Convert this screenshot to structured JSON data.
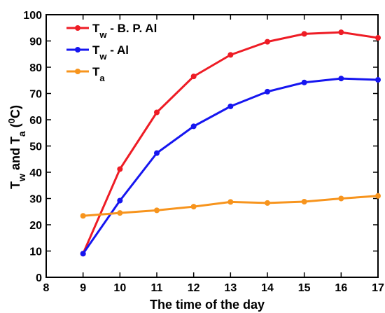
{
  "chart_data": {
    "type": "line",
    "title": "",
    "xlabel": "The time of the day",
    "ylabel": {
      "parts": [
        "T",
        "w",
        " and T",
        "a",
        " (",
        "0",
        "C)"
      ]
    },
    "xlim": [
      8,
      17
    ],
    "ylim": [
      0,
      100
    ],
    "x_ticks": [
      8,
      9,
      10,
      11,
      12,
      13,
      14,
      15,
      16,
      17
    ],
    "y_ticks": [
      0,
      10,
      20,
      30,
      40,
      50,
      60,
      70,
      80,
      90,
      100
    ],
    "x": [
      9,
      10,
      11,
      12,
      13,
      14,
      15,
      16,
      17
    ],
    "grid": false,
    "legend_position": "top-left",
    "series": [
      {
        "name": "Tw - B. P. Al",
        "legend_parts": [
          "T",
          "w",
          " - B. P. Al"
        ],
        "color": "#ee1c25",
        "values": [
          9,
          41.2,
          62.8,
          76.5,
          84.7,
          89.7,
          92.7,
          93.3,
          91.2
        ]
      },
      {
        "name": "Tw - Al",
        "legend_parts": [
          " T",
          "w",
          " -  Al"
        ],
        "color": "#1616f0",
        "values": [
          9,
          29.2,
          47.3,
          57.5,
          65.1,
          70.7,
          74.2,
          75.7,
          75.2
        ]
      },
      {
        "name": "Ta",
        "legend_parts": [
          "T",
          "a",
          ""
        ],
        "color": "#f7941d",
        "values": [
          23.4,
          24.5,
          25.5,
          26.9,
          28.7,
          28.3,
          28.8,
          30.0,
          31.0
        ]
      }
    ]
  }
}
